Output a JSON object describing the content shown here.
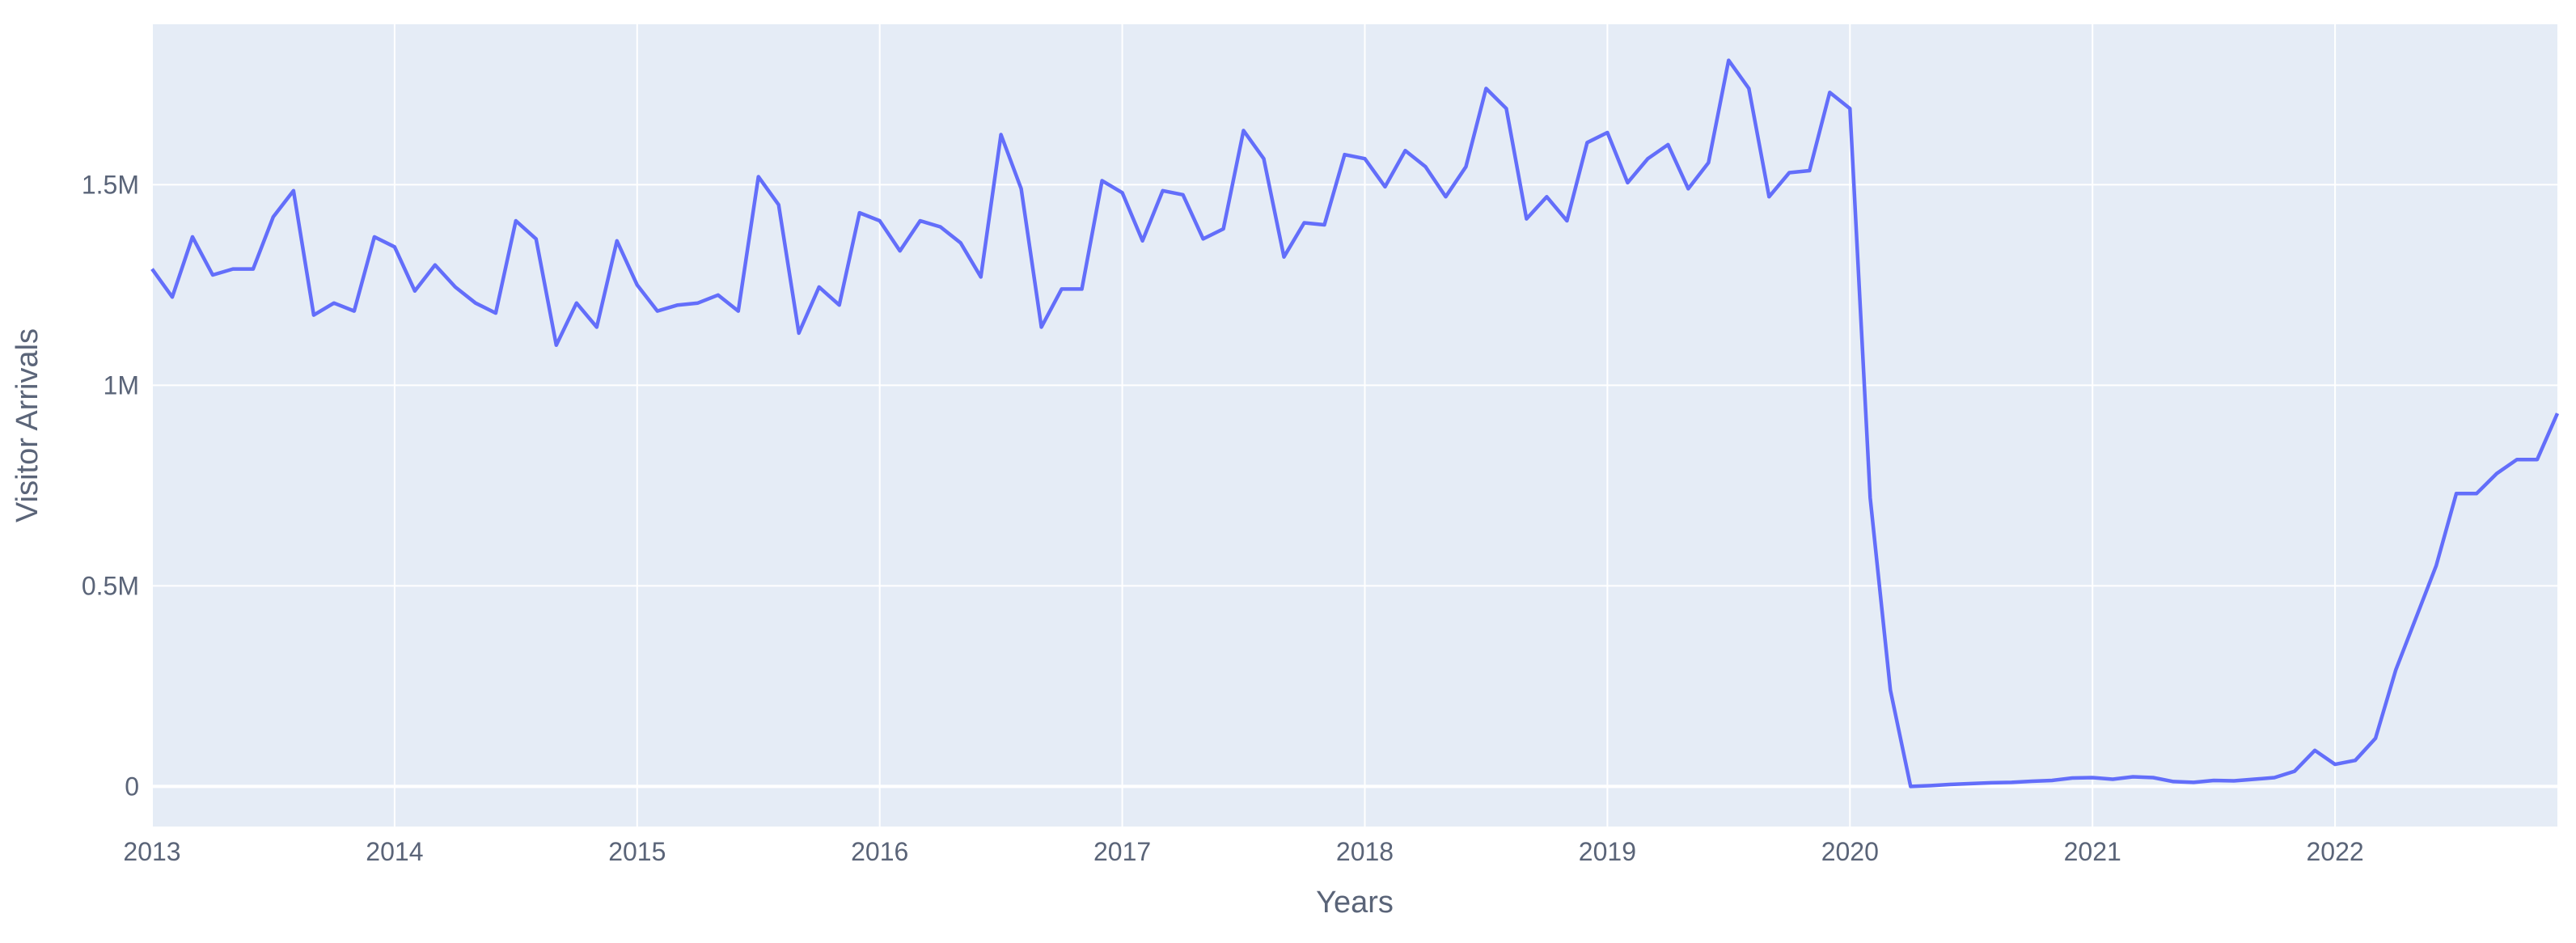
{
  "chart_data": {
    "type": "line",
    "title": "",
    "xlabel": "Years",
    "ylabel": "Visitor Arrivals",
    "xlim": [
      "2013-01",
      "2022-12"
    ],
    "ylim": [
      -100000,
      1900000
    ],
    "grid": true,
    "legend": "none",
    "x_ticks": [
      {
        "year": 2013,
        "label": "2013"
      },
      {
        "year": 2014,
        "label": "2014"
      },
      {
        "year": 2015,
        "label": "2015"
      },
      {
        "year": 2016,
        "label": "2016"
      },
      {
        "year": 2017,
        "label": "2017"
      },
      {
        "year": 2018,
        "label": "2018"
      },
      {
        "year": 2019,
        "label": "2019"
      },
      {
        "year": 2020,
        "label": "2020"
      },
      {
        "year": 2021,
        "label": "2021"
      },
      {
        "year": 2022,
        "label": "2022"
      }
    ],
    "y_ticks": [
      {
        "value": 0,
        "label": "0"
      },
      {
        "value": 500000,
        "label": "0.5M"
      },
      {
        "value": 1000000,
        "label": "1M"
      },
      {
        "value": 1500000,
        "label": "1.5M"
      }
    ],
    "colors": {
      "plot_bg": "#e5ecf6",
      "grid": "#ffffff",
      "line": "#636efa",
      "text": "#5a6478"
    },
    "series": [
      {
        "name": "",
        "x": [
          "2013-01",
          "2013-02",
          "2013-03",
          "2013-04",
          "2013-05",
          "2013-06",
          "2013-07",
          "2013-08",
          "2013-09",
          "2013-10",
          "2013-11",
          "2013-12",
          "2014-01",
          "2014-02",
          "2014-03",
          "2014-04",
          "2014-05",
          "2014-06",
          "2014-07",
          "2014-08",
          "2014-09",
          "2014-10",
          "2014-11",
          "2014-12",
          "2015-01",
          "2015-02",
          "2015-03",
          "2015-04",
          "2015-05",
          "2015-06",
          "2015-07",
          "2015-08",
          "2015-09",
          "2015-10",
          "2015-11",
          "2015-12",
          "2016-01",
          "2016-02",
          "2016-03",
          "2016-04",
          "2016-05",
          "2016-06",
          "2016-07",
          "2016-08",
          "2016-09",
          "2016-10",
          "2016-11",
          "2016-12",
          "2017-01",
          "2017-02",
          "2017-03",
          "2017-04",
          "2017-05",
          "2017-06",
          "2017-07",
          "2017-08",
          "2017-09",
          "2017-10",
          "2017-11",
          "2017-12",
          "2018-01",
          "2018-02",
          "2018-03",
          "2018-04",
          "2018-05",
          "2018-06",
          "2018-07",
          "2018-08",
          "2018-09",
          "2018-10",
          "2018-11",
          "2018-12",
          "2019-01",
          "2019-02",
          "2019-03",
          "2019-04",
          "2019-05",
          "2019-06",
          "2019-07",
          "2019-08",
          "2019-09",
          "2019-10",
          "2019-11",
          "2019-12",
          "2020-01",
          "2020-02",
          "2020-03",
          "2020-04",
          "2020-05",
          "2020-06",
          "2020-07",
          "2020-08",
          "2020-09",
          "2020-10",
          "2020-11",
          "2020-12",
          "2021-01",
          "2021-02",
          "2021-03",
          "2021-04",
          "2021-05",
          "2021-06",
          "2021-07",
          "2021-08",
          "2021-09",
          "2021-10",
          "2021-11",
          "2021-12",
          "2022-01",
          "2022-02",
          "2022-03",
          "2022-04",
          "2022-05",
          "2022-06",
          "2022-07",
          "2022-08",
          "2022-09",
          "2022-10",
          "2022-11",
          "2022-12"
        ],
        "y": [
          1290000,
          1220000,
          1370000,
          1275000,
          1290000,
          1290000,
          1420000,
          1485000,
          1175000,
          1205000,
          1185000,
          1370000,
          1345000,
          1235000,
          1300000,
          1245000,
          1205000,
          1180000,
          1410000,
          1365000,
          1100000,
          1205000,
          1145000,
          1360000,
          1250000,
          1185000,
          1200000,
          1205000,
          1225000,
          1185000,
          1520000,
          1450000,
          1130000,
          1245000,
          1200000,
          1430000,
          1410000,
          1335000,
          1410000,
          1395000,
          1355000,
          1270000,
          1625000,
          1490000,
          1145000,
          1240000,
          1240000,
          1510000,
          1480000,
          1360000,
          1485000,
          1475000,
          1365000,
          1390000,
          1635000,
          1565000,
          1320000,
          1405000,
          1400000,
          1575000,
          1565000,
          1495000,
          1585000,
          1545000,
          1470000,
          1545000,
          1740000,
          1690000,
          1415000,
          1470000,
          1410000,
          1605000,
          1630000,
          1505000,
          1565000,
          1600000,
          1490000,
          1555000,
          1810000,
          1740000,
          1470000,
          1530000,
          1535000,
          1730000,
          1690000,
          720000,
          240000,
          0,
          2000,
          5000,
          7000,
          9000,
          10000,
          13000,
          15000,
          21000,
          22000,
          18000,
          24000,
          22000,
          12000,
          10000,
          15000,
          14000,
          18000,
          22000,
          38000,
          90000,
          55000,
          65000,
          120000,
          290000,
          420000,
          550000,
          730000,
          730000,
          780000,
          815000,
          815000,
          930000
        ]
      }
    ]
  }
}
